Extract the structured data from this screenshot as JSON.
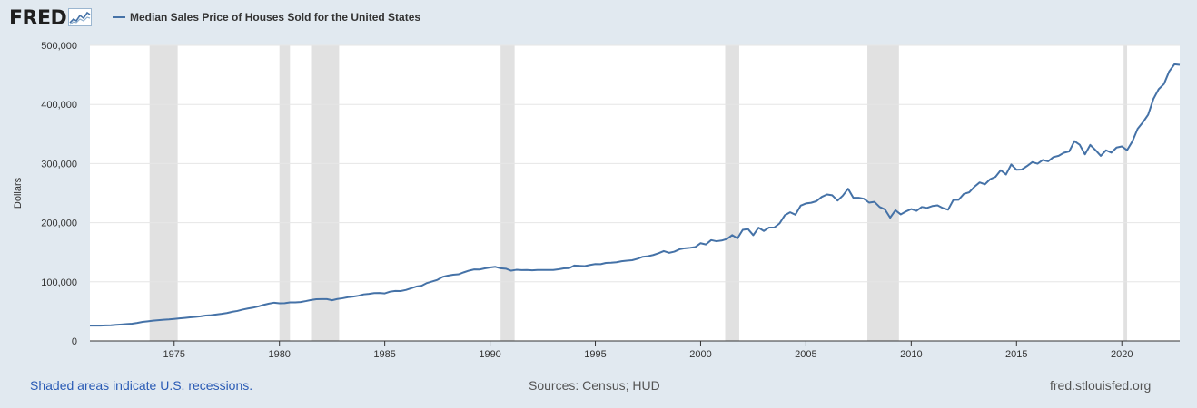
{
  "header": {
    "logo_text": "FRED",
    "logo_icon": "fred-chart-icon"
  },
  "footer": {
    "footnote": "Shaded areas indicate U.S. recessions.",
    "sources": "Sources: Census; HUD",
    "link": "fred.stlouisfed.org"
  },
  "colors": {
    "line": "#4572a7",
    "recession": "#e1e1e1",
    "background": "#e1e9f0",
    "plot": "#ffffff",
    "grid": "#e6e6e6",
    "footnote": "#2a5bb5"
  },
  "chart_data": {
    "type": "line",
    "title": "",
    "xlabel": "",
    "ylabel": "Dollars",
    "xlim": [
      "1971-01-01",
      "2022-10-01"
    ],
    "ylim": [
      0,
      500000
    ],
    "grid": true,
    "legend_placement": "top-left",
    "yticks": [
      0,
      100000,
      200000,
      300000,
      400000,
      500000
    ],
    "ytick_labels": [
      "0",
      "100,000",
      "200,000",
      "300,000",
      "400,000",
      "500,000"
    ],
    "xticks": [
      1975,
      1980,
      1985,
      1990,
      1995,
      2000,
      2005,
      2010,
      2015,
      2020
    ],
    "xtick_labels": [
      "1975",
      "1980",
      "1985",
      "1990",
      "1995",
      "2000",
      "2005",
      "2010",
      "2015",
      "2020"
    ],
    "recessions": [
      [
        "1973-11-01",
        "1975-03-01"
      ],
      [
        "1980-01-01",
        "1980-07-01"
      ],
      [
        "1981-07-01",
        "1982-11-01"
      ],
      [
        "1990-07-01",
        "1991-03-01"
      ],
      [
        "2001-03-01",
        "2001-11-01"
      ],
      [
        "2007-12-01",
        "2009-06-01"
      ],
      [
        "2020-02-01",
        "2020-04-01"
      ]
    ],
    "series": [
      {
        "name": "Median Sales Price of Houses Sold for the United States",
        "color": "#4572a7",
        "x": [
          "1971-01-01",
          "1971-04-01",
          "1971-07-01",
          "1971-10-01",
          "1972-01-01",
          "1972-04-01",
          "1972-07-01",
          "1972-10-01",
          "1973-01-01",
          "1973-04-01",
          "1973-07-01",
          "1973-10-01",
          "1974-01-01",
          "1974-04-01",
          "1974-07-01",
          "1974-10-01",
          "1975-01-01",
          "1975-04-01",
          "1975-07-01",
          "1975-10-01",
          "1976-01-01",
          "1976-04-01",
          "1976-07-01",
          "1976-10-01",
          "1977-01-01",
          "1977-04-01",
          "1977-07-01",
          "1977-10-01",
          "1978-01-01",
          "1978-04-01",
          "1978-07-01",
          "1978-10-01",
          "1979-01-01",
          "1979-04-01",
          "1979-07-01",
          "1979-10-01",
          "1980-01-01",
          "1980-04-01",
          "1980-07-01",
          "1980-10-01",
          "1981-01-01",
          "1981-04-01",
          "1981-07-01",
          "1981-10-01",
          "1982-01-01",
          "1982-04-01",
          "1982-07-01",
          "1982-10-01",
          "1983-01-01",
          "1983-04-01",
          "1983-07-01",
          "1983-10-01",
          "1984-01-01",
          "1984-04-01",
          "1984-07-01",
          "1984-10-01",
          "1985-01-01",
          "1985-04-01",
          "1985-07-01",
          "1985-10-01",
          "1986-01-01",
          "1986-04-01",
          "1986-07-01",
          "1986-10-01",
          "1987-01-01",
          "1987-04-01",
          "1987-07-01",
          "1987-10-01",
          "1988-01-01",
          "1988-04-01",
          "1988-07-01",
          "1988-10-01",
          "1989-01-01",
          "1989-04-01",
          "1989-07-01",
          "1989-10-01",
          "1990-01-01",
          "1990-04-01",
          "1990-07-01",
          "1990-10-01",
          "1991-01-01",
          "1991-04-01",
          "1991-07-01",
          "1991-10-01",
          "1992-01-01",
          "1992-04-01",
          "1992-07-01",
          "1992-10-01",
          "1993-01-01",
          "1993-04-01",
          "1993-07-01",
          "1993-10-01",
          "1994-01-01",
          "1994-04-01",
          "1994-07-01",
          "1994-10-01",
          "1995-01-01",
          "1995-04-01",
          "1995-07-01",
          "1995-10-01",
          "1996-01-01",
          "1996-04-01",
          "1996-07-01",
          "1996-10-01",
          "1997-01-01",
          "1997-04-01",
          "1997-07-01",
          "1997-10-01",
          "1998-01-01",
          "1998-04-01",
          "1998-07-01",
          "1998-10-01",
          "1999-01-01",
          "1999-04-01",
          "1999-07-01",
          "1999-10-01",
          "2000-01-01",
          "2000-04-01",
          "2000-07-01",
          "2000-10-01",
          "2001-01-01",
          "2001-04-01",
          "2001-07-01",
          "2001-10-01",
          "2002-01-01",
          "2002-04-01",
          "2002-07-01",
          "2002-10-01",
          "2003-01-01",
          "2003-04-01",
          "2003-07-01",
          "2003-10-01",
          "2004-01-01",
          "2004-04-01",
          "2004-07-01",
          "2004-10-01",
          "2005-01-01",
          "2005-04-01",
          "2005-07-01",
          "2005-10-01",
          "2006-01-01",
          "2006-04-01",
          "2006-07-01",
          "2006-10-01",
          "2007-01-01",
          "2007-04-01",
          "2007-07-01",
          "2007-10-01",
          "2008-01-01",
          "2008-04-01",
          "2008-07-01",
          "2008-10-01",
          "2009-01-01",
          "2009-04-01",
          "2009-07-01",
          "2009-10-01",
          "2010-01-01",
          "2010-04-01",
          "2010-07-01",
          "2010-10-01",
          "2011-01-01",
          "2011-04-01",
          "2011-07-01",
          "2011-10-01",
          "2012-01-01",
          "2012-04-01",
          "2012-07-01",
          "2012-10-01",
          "2013-01-01",
          "2013-04-01",
          "2013-07-01",
          "2013-10-01",
          "2014-01-01",
          "2014-04-01",
          "2014-07-01",
          "2014-10-01",
          "2015-01-01",
          "2015-04-01",
          "2015-07-01",
          "2015-10-01",
          "2016-01-01",
          "2016-04-01",
          "2016-07-01",
          "2016-10-01",
          "2017-01-01",
          "2017-04-01",
          "2017-07-01",
          "2017-10-01",
          "2018-01-01",
          "2018-04-01",
          "2018-07-01",
          "2018-10-01",
          "2019-01-01",
          "2019-04-01",
          "2019-07-01",
          "2019-10-01",
          "2020-01-01",
          "2020-04-01",
          "2020-07-01",
          "2020-10-01",
          "2021-01-01",
          "2021-04-01",
          "2021-07-01",
          "2021-10-01",
          "2022-01-01",
          "2022-04-01",
          "2022-07-01",
          "2022-10-01"
        ],
        "y": [
          25800,
          26000,
          25900,
          26200,
          26500,
          27300,
          27800,
          28500,
          29200,
          30500,
          32200,
          33200,
          34300,
          35000,
          35800,
          36400,
          37200,
          38100,
          39000,
          39800,
          40600,
          41600,
          43000,
          43600,
          44600,
          45800,
          47200,
          49200,
          50700,
          53000,
          54900,
          56300,
          58400,
          61000,
          63100,
          64700,
          63700,
          63800,
          65100,
          65200,
          65800,
          67400,
          69200,
          70600,
          70700,
          70800,
          68800,
          70900,
          72200,
          73900,
          75000,
          76400,
          78700,
          79600,
          80900,
          81100,
          80400,
          83300,
          84600,
          84300,
          86200,
          89000,
          92000,
          93400,
          97900,
          100600,
          103300,
          108300,
          110400,
          112000,
          112700,
          116000,
          118900,
          121000,
          120800,
          122700,
          124200,
          125300,
          122800,
          122200,
          118800,
          120300,
          119900,
          120000,
          119500,
          120000,
          120000,
          120000,
          120000,
          121100,
          122700,
          123000,
          127500,
          127000,
          126500,
          128500,
          130000,
          129800,
          131900,
          132300,
          133000,
          134800,
          135800,
          136500,
          138900,
          142300,
          143300,
          145300,
          148300,
          152000,
          149000,
          151000,
          155000,
          156700,
          157500,
          158800,
          165300,
          163200,
          170500,
          168600,
          169800,
          172500,
          179000,
          173500,
          187900,
          189200,
          178800,
          191500,
          186000,
          191800,
          191900,
          198800,
          212700,
          217600,
          213500,
          228800,
          232500,
          233700,
          236400,
          243600,
          247700,
          246300,
          237400,
          245700,
          257400,
          242200,
          242200,
          240500,
          233900,
          235300,
          226500,
          222500,
          208400,
          220900,
          214000,
          219000,
          223000,
          220000,
          226500,
          225000,
          228100,
          229300,
          224700,
          221900,
          238400,
          238700,
          248800,
          251300,
          260700,
          268100,
          264900,
          273600,
          277500,
          288700,
          281500,
          298500,
          289400,
          289900,
          295800,
          302500,
          299800,
          306000,
          303800,
          310900,
          313100,
          318200,
          320500,
          337900,
          331800,
          315600,
          331500,
          322700,
          313000,
          322500,
          318400,
          327100,
          329000,
          322600,
          337500,
          358700,
          369800,
          382600,
          409300,
          425800,
          434500,
          456000,
          468000,
          467000
        ]
      }
    ]
  }
}
